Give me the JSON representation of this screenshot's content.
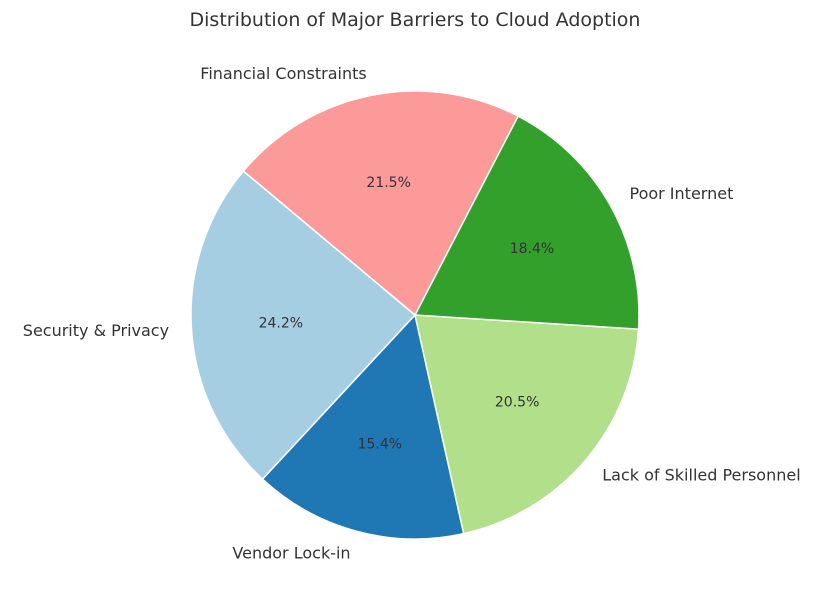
{
  "chart_data": {
    "type": "pie",
    "title": "Distribution of Major Barriers to Cloud Adoption",
    "slices": [
      {
        "label": "Security & Privacy",
        "value": 24.2,
        "pct_label": "24.2%",
        "color": "#a6cee3"
      },
      {
        "label": "Vendor Lock-in",
        "value": 15.4,
        "pct_label": "15.4%",
        "color": "#1f78b4"
      },
      {
        "label": "Lack of Skilled Personnel",
        "value": 20.5,
        "pct_label": "20.5%",
        "color": "#b2df8a"
      },
      {
        "label": "Poor Internet",
        "value": 18.4,
        "pct_label": "18.4%",
        "color": "#33a02c"
      },
      {
        "label": "Financial Constraints",
        "value": 21.5,
        "pct_label": "21.5%",
        "color": "#fb9a99"
      }
    ],
    "start_angle_deg": 140,
    "direction": "counterclockwise",
    "legend": "none"
  }
}
